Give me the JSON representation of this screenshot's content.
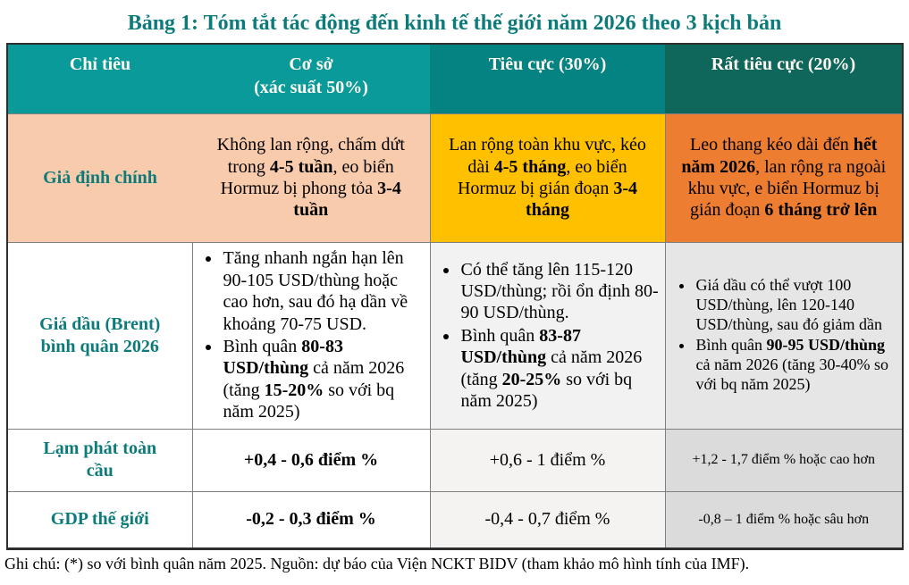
{
  "title": "Bảng 1: Tóm tắt tác động đến kinh tế thế giới năm 2026 theo 3 kịch bản",
  "colors": {
    "title_text": "#0e7b7b",
    "header_base": "#0a9a9a",
    "header_negative": "#058383",
    "header_very_negative": "#0f675c",
    "row_label_text": "#0e7b7b",
    "assumption_base_bg": "#f8cbad",
    "assumption_negative_bg": "#ffc000",
    "assumption_very_negative_bg": "#ed7d31",
    "light_gray_bg": "#f2f2f2",
    "gray_bg": "#e7e6e6"
  },
  "table": {
    "headers": [
      {
        "label": "Chỉ tiêu",
        "sub": ""
      },
      {
        "label": "Cơ sở",
        "sub": "(xác suất 50%)"
      },
      {
        "label": "Tiêu cực (30%)",
        "sub": ""
      },
      {
        "label": "Rất tiêu cực (20%)",
        "sub": ""
      }
    ],
    "rows": [
      {
        "label": "Giả định chính",
        "base": [
          {
            "t": "Không lan rộng, chấm dứt trong ",
            "b": false
          },
          {
            "t": "4-5 tuần",
            "b": true
          },
          {
            "t": ", eo biển Hormuz bị phong tỏa ",
            "b": false
          },
          {
            "t": "3-4 tuần",
            "b": true
          }
        ],
        "negative": [
          {
            "t": "Lan rộng toàn khu vực, kéo dài ",
            "b": false
          },
          {
            "t": "4-5 tháng",
            "b": true
          },
          {
            "t": ", eo biển Hormuz bị gián đoạn ",
            "b": false
          },
          {
            "t": "3-4 tháng",
            "b": true
          }
        ],
        "very_negative": [
          {
            "t": "Leo thang kéo dài đến ",
            "b": false
          },
          {
            "t": "hết năm 2026",
            "b": true
          },
          {
            "t": ", lan rộng ra ngoài khu vực, e biển Hormuz bị gián đoạn ",
            "b": false
          },
          {
            "t": "6 tháng trở lên",
            "b": true
          }
        ]
      },
      {
        "label": "Giá dầu (Brent) bình quân 2026",
        "base_bullets": [
          [
            {
              "t": "Tăng nhanh ngắn hạn lên 90-105 USD/thùng hoặc cao hơn, sau đó hạ dần về khoảng 70-75 USD.",
              "b": false
            }
          ],
          [
            {
              "t": "Bình quân ",
              "b": false
            },
            {
              "t": "80-83 USD/thùng",
              "b": true
            },
            {
              "t": " cả năm 2026 (tăng ",
              "b": false
            },
            {
              "t": "15-20%",
              "b": true
            },
            {
              "t": " so với bq năm 2025)",
              "b": false
            }
          ]
        ],
        "negative_bullets": [
          [
            {
              "t": "Có thể tăng lên 115-120 USD/thùng; rồi ổn định 80-90 USD/thùng.",
              "b": false
            }
          ],
          [
            {
              "t": "Bình quân ",
              "b": false
            },
            {
              "t": "83-87 USD/thùng",
              "b": true
            },
            {
              "t": " cả năm 2026 (tăng ",
              "b": false
            },
            {
              "t": "20-25%",
              "b": true
            },
            {
              "t": " so với bq năm 2025)",
              "b": false
            }
          ]
        ],
        "very_negative_bullets": [
          [
            {
              "t": "Giá dầu có thể vượt 100 USD/thùng, lên 120-140 USD/thùng, sau đó giảm dần",
              "b": false
            }
          ],
          [
            {
              "t": "Bình quân ",
              "b": false
            },
            {
              "t": "90-95 USD/thùng",
              "b": true
            },
            {
              "t": " cả năm 2026 (tăng 30-40% so với bq năm 2025)",
              "b": false
            }
          ]
        ]
      },
      {
        "label": "Lạm phát toàn cầu",
        "base": "+0,4 - 0,6 điểm %",
        "negative": "+0,6 - 1 điểm %",
        "very_negative": "+1,2 - 1,7 điểm % hoặc cao hơn"
      },
      {
        "label": "GDP thế giới",
        "base": "-0,2 - 0,3 điểm %",
        "negative": "-0,4 - 0,7 điểm %",
        "very_negative": "-0,8 – 1 điểm % hoặc sâu hơn"
      }
    ]
  },
  "footnote": "Ghi chú: (*) so với bình quân năm 2025. Nguồn: dự báo của Viện NCKT BIDV (tham khảo mô hình tính của IMF)."
}
